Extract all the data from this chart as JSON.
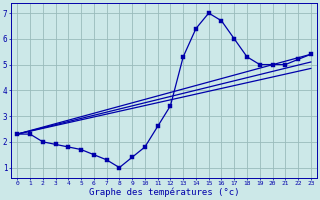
{
  "xlabel": "Graphe des températures (°c)",
  "bg_color": "#cce8e8",
  "line_color": "#0000aa",
  "grid_color": "#99bbbb",
  "x_ticks": [
    0,
    1,
    2,
    3,
    4,
    5,
    6,
    7,
    8,
    9,
    10,
    11,
    12,
    13,
    14,
    15,
    16,
    17,
    18,
    19,
    20,
    21,
    22,
    23
  ],
  "y_ticks": [
    1,
    2,
    3,
    4,
    5,
    6,
    7
  ],
  "ylim": [
    0.6,
    7.4
  ],
  "xlim": [
    -0.5,
    23.5
  ],
  "temp_line": [
    2.3,
    2.3,
    2.0,
    1.9,
    1.8,
    1.7,
    1.5,
    1.3,
    1.0,
    1.4,
    1.8,
    2.6,
    3.4,
    5.3,
    6.4,
    7.0,
    6.7,
    6.0,
    5.3,
    5.0,
    5.0,
    5.0,
    5.2,
    5.4
  ],
  "straight_lines": [
    {
      "x0": 0,
      "y0": 2.3,
      "x1": 23,
      "y1": 5.4
    },
    {
      "x0": 0,
      "y0": 2.3,
      "x1": 23,
      "y1": 5.1
    },
    {
      "x0": 0,
      "y0": 2.3,
      "x1": 23,
      "y1": 4.85
    }
  ]
}
